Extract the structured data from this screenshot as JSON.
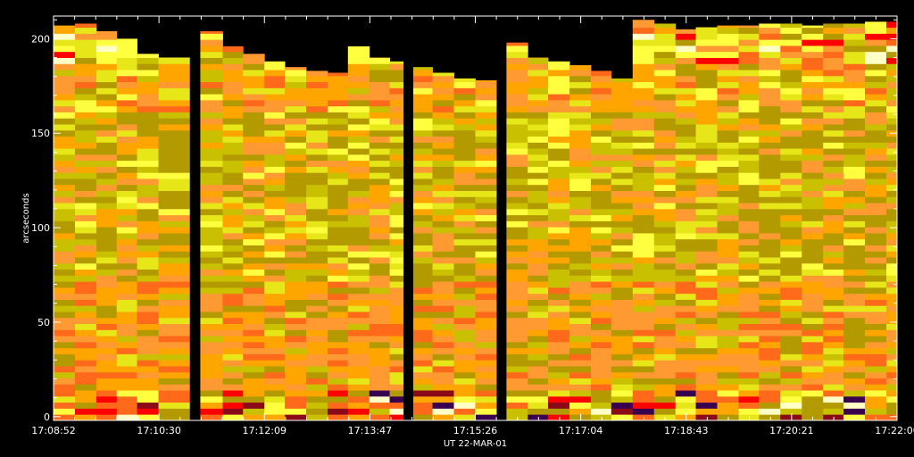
{
  "chart_data": {
    "type": "heatmap",
    "title": "",
    "xlabel": "UT  22-MAR-01",
    "ylabel": "arcseconds",
    "x_tick_labels": [
      "17:08:52",
      "17:10:30",
      "17:12:09",
      "17:13:47",
      "17:15:26",
      "17:17:04",
      "17:18:43",
      "17:20:21",
      "17:22:00"
    ],
    "y_ticks": [
      0,
      50,
      100,
      150,
      200
    ],
    "ylim": [
      -2,
      212
    ],
    "time_range": [
      "17:08:52",
      "17:22:00"
    ],
    "background_color": "#000000",
    "axis_color": "#ffffff",
    "colormap": [
      "#3a0050",
      "#8b0a1a",
      "#ff0000",
      "#ff6a1a",
      "#ff9a33",
      "#ffa500",
      "#b39a00",
      "#c8c000",
      "#e6e619",
      "#ffff40",
      "#ffffc8"
    ],
    "data_gaps": [
      [
        "17:11:00",
        "17:11:09"
      ],
      [
        "17:14:19",
        "17:14:28"
      ],
      [
        "17:15:46",
        "17:15:55"
      ]
    ],
    "columns": [
      {
        "start": "17:08:52",
        "end": "17:09:12",
        "height": 207
      },
      {
        "start": "17:09:12",
        "end": "17:09:32",
        "height": 208
      },
      {
        "start": "17:09:32",
        "end": "17:09:51",
        "height": 204
      },
      {
        "start": "17:09:51",
        "end": "17:10:10",
        "height": 200
      },
      {
        "start": "17:10:10",
        "end": "17:10:30",
        "height": 192
      },
      {
        "start": "17:10:30",
        "end": "17:10:59",
        "height": 190
      },
      {
        "start": "17:11:09",
        "end": "17:11:30",
        "height": 204
      },
      {
        "start": "17:11:30",
        "end": "17:11:49",
        "height": 196
      },
      {
        "start": "17:11:49",
        "end": "17:12:09",
        "height": 192
      },
      {
        "start": "17:12:09",
        "end": "17:12:28",
        "height": 188
      },
      {
        "start": "17:12:28",
        "end": "17:12:48",
        "height": 185
      },
      {
        "start": "17:12:48",
        "end": "17:13:08",
        "height": 183
      },
      {
        "start": "17:13:08",
        "end": "17:13:27",
        "height": 182
      },
      {
        "start": "17:13:27",
        "end": "17:13:47",
        "height": 196
      },
      {
        "start": "17:13:47",
        "end": "17:14:06",
        "height": 190
      },
      {
        "start": "17:14:06",
        "end": "17:14:19",
        "height": 188
      },
      {
        "start": "17:14:28",
        "end": "17:14:46",
        "height": 185
      },
      {
        "start": "17:14:46",
        "end": "17:15:06",
        "height": 182
      },
      {
        "start": "17:15:06",
        "end": "17:15:26",
        "height": 179
      },
      {
        "start": "17:15:26",
        "end": "17:15:46",
        "height": 178
      },
      {
        "start": "17:15:55",
        "end": "17:16:15",
        "height": 198
      },
      {
        "start": "17:16:15",
        "end": "17:16:34",
        "height": 190
      },
      {
        "start": "17:16:34",
        "end": "17:16:54",
        "height": 188
      },
      {
        "start": "17:16:54",
        "end": "17:17:14",
        "height": 186
      },
      {
        "start": "17:17:14",
        "end": "17:17:33",
        "height": 183
      },
      {
        "start": "17:17:33",
        "end": "17:17:53",
        "height": 179
      },
      {
        "start": "17:17:53",
        "end": "17:18:13",
        "height": 210
      },
      {
        "start": "17:18:13",
        "end": "17:18:33",
        "height": 208
      },
      {
        "start": "17:18:33",
        "end": "17:18:52",
        "height": 205
      },
      {
        "start": "17:18:52",
        "end": "17:19:12",
        "height": 206
      },
      {
        "start": "17:19:12",
        "end": "17:19:32",
        "height": 207
      },
      {
        "start": "17:19:32",
        "end": "17:19:51",
        "height": 207
      },
      {
        "start": "17:19:51",
        "end": "17:20:11",
        "height": 208
      },
      {
        "start": "17:20:11",
        "end": "17:20:31",
        "height": 208
      },
      {
        "start": "17:20:31",
        "end": "17:20:51",
        "height": 207
      },
      {
        "start": "17:20:51",
        "end": "17:21:10",
        "height": 208
      },
      {
        "start": "17:21:10",
        "end": "17:21:30",
        "height": 208
      },
      {
        "start": "17:21:30",
        "end": "17:21:50",
        "height": 209
      },
      {
        "start": "17:21:50",
        "end": "17:22:00",
        "height": 209
      }
    ]
  }
}
